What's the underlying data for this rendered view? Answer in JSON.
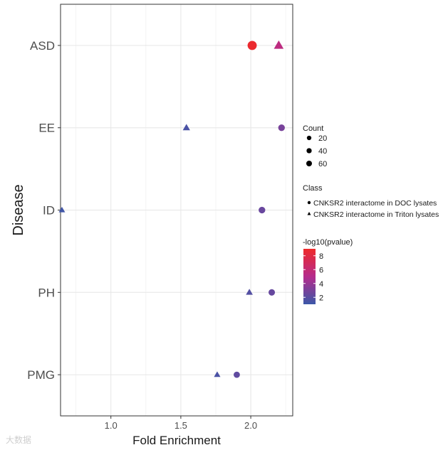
{
  "chart_data": {
    "type": "scatter",
    "xlabel": "Fold Enrichment",
    "ylabel": "Disease",
    "xlim": [
      0.64,
      2.3
    ],
    "x_ticks": [
      1.0,
      1.5,
      2.0
    ],
    "x_tick_labels": [
      "1.0",
      "1.5",
      "2.0"
    ],
    "categories": [
      "ASD",
      "EE",
      "ID",
      "PH",
      "PMG"
    ],
    "grid": true,
    "legend_position": "right",
    "series": [
      {
        "name": "CNKSR2 interactome in DOC lysates",
        "shape": "circle",
        "points": [
          {
            "category": "ASD",
            "x": 2.01,
            "count": 60,
            "neg_log10_p": 8.8
          },
          {
            "category": "EE",
            "x": 2.22,
            "count": 12,
            "neg_log10_p": 3.0
          },
          {
            "category": "ID",
            "x": 2.08,
            "count": 12,
            "neg_log10_p": 2.5
          },
          {
            "category": "PH",
            "x": 2.15,
            "count": 10,
            "neg_log10_p": 2.4
          },
          {
            "category": "PMG",
            "x": 1.9,
            "count": 8,
            "neg_log10_p": 2.2
          }
        ]
      },
      {
        "name": "CNKSR2 interactome in Triton lysates",
        "shape": "triangle",
        "points": [
          {
            "category": "ASD",
            "x": 2.2,
            "count": 50,
            "neg_log10_p": 5.5
          },
          {
            "category": "EE",
            "x": 1.54,
            "count": 12,
            "neg_log10_p": 1.5
          },
          {
            "category": "ID",
            "x": 0.65,
            "count": 4,
            "neg_log10_p": 1.2
          },
          {
            "category": "PH",
            "x": 1.99,
            "count": 8,
            "neg_log10_p": 1.8
          },
          {
            "category": "PMG",
            "x": 1.76,
            "count": 5,
            "neg_log10_p": 1.5
          }
        ]
      }
    ],
    "size_legend": {
      "title": "Count",
      "values": [
        20,
        40,
        60
      ],
      "labels": [
        "20",
        "40",
        "60"
      ]
    },
    "shape_legend": {
      "title": "Class",
      "labels": [
        "CNKSR2 interactome in DOC lysates",
        "CNKSR2 interactome in Triton lysates"
      ]
    },
    "color_legend": {
      "title": "-log10(pvalue)",
      "ticks": [
        2,
        4,
        6,
        8
      ],
      "tick_labels": [
        "2",
        "4",
        "6",
        "8"
      ],
      "range": [
        1,
        9
      ],
      "low_color": "#3b58a8",
      "mid_color": "#b52b8c",
      "high_color": "#ee2a2a"
    }
  },
  "watermark": "大数据"
}
